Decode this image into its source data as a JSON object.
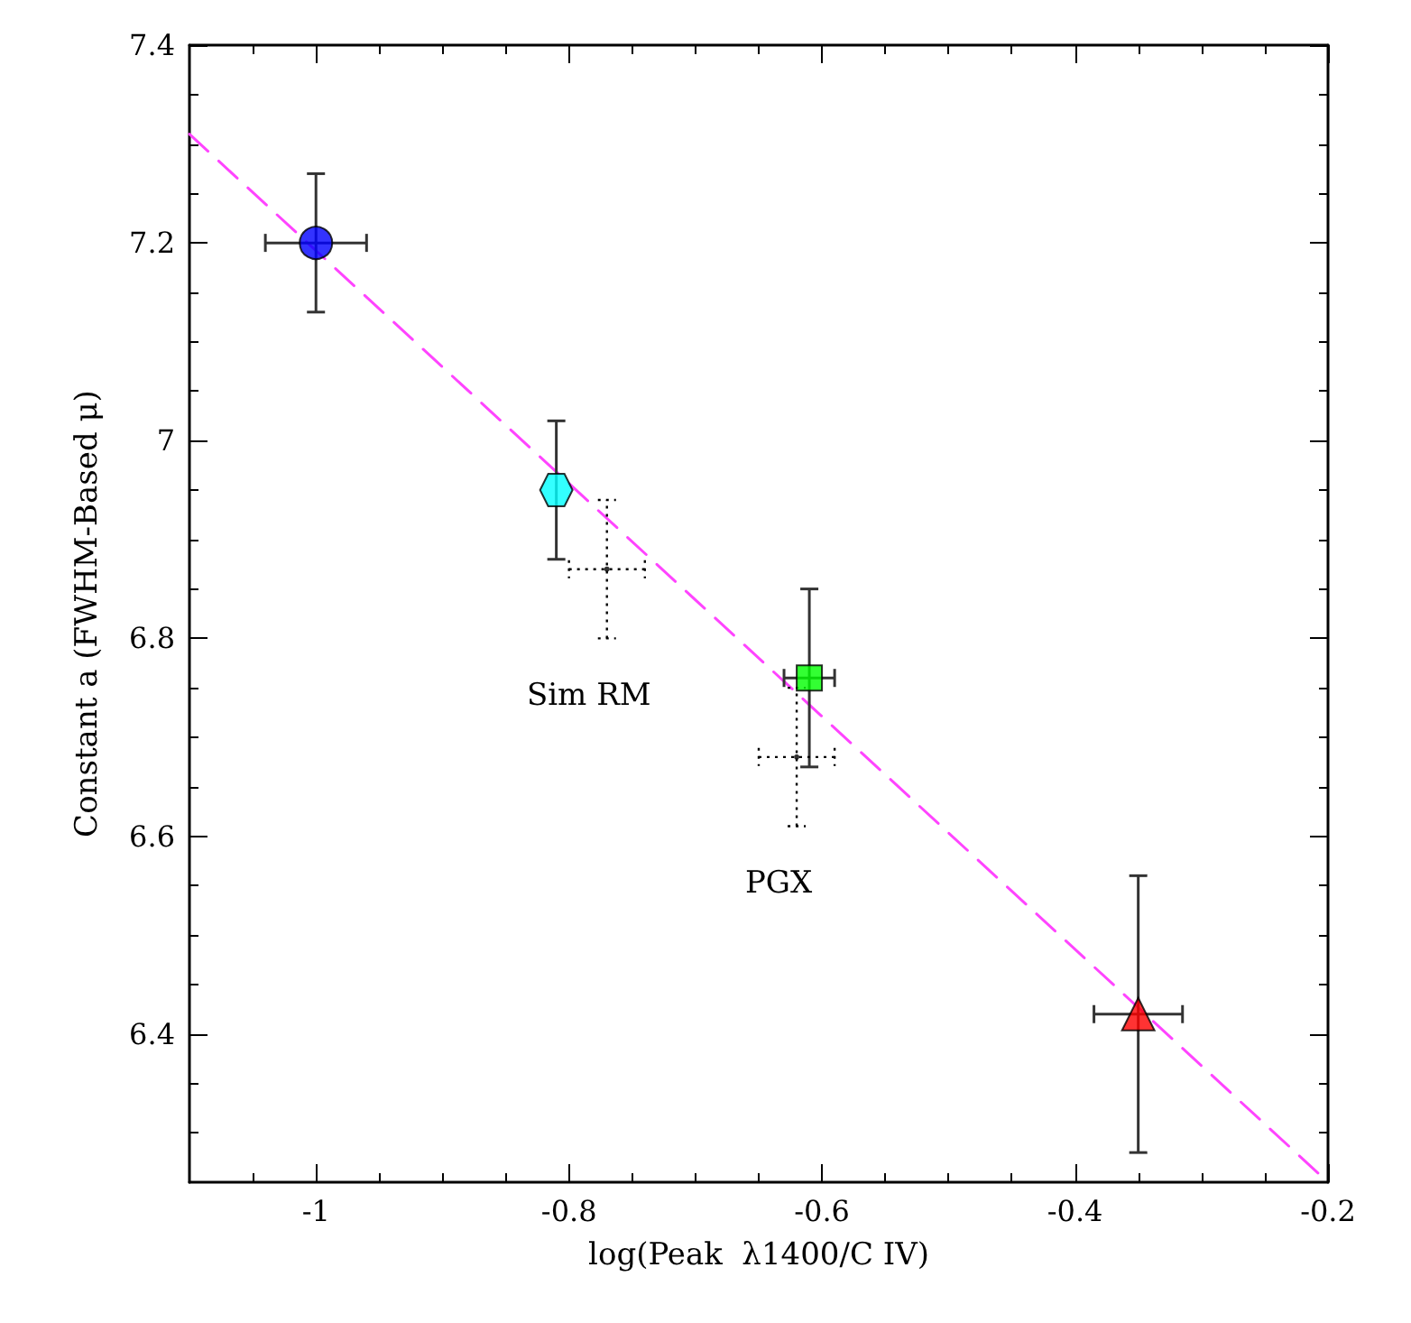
{
  "chart_data": {
    "type": "scatter",
    "xlabel": "log(Peak  λ1400/C IV)",
    "ylabel": "Constant a (FWHM-Based μ)",
    "xlim": [
      -1.1,
      -0.2
    ],
    "xticks": [
      -1,
      -0.8,
      -0.6,
      -0.4,
      -0.2
    ],
    "ylim": [
      6.25,
      7.4
    ],
    "yticks": [
      6.4,
      6.6,
      6.8,
      7,
      7.2,
      7.4
    ],
    "grid": false,
    "series": [
      {
        "type": "line",
        "color": "#ff44ff",
        "line_style": "dashed",
        "marker": "none",
        "x": [
          -1.1,
          -0.2
        ],
        "values": [
          7.31,
          6.25
        ]
      },
      {
        "color": "#0000ff",
        "marker": "circle",
        "x": [
          -1
        ],
        "values": [
          7.2
        ],
        "errors": [
          [
            7.13,
            7.27
          ]
        ],
        "xerrors": [
          0.04
        ]
      },
      {
        "color": "#00ffff",
        "x": [
          -0.81
        ],
        "values": [
          6.95
        ],
        "errors": [
          [
            6.88,
            7.02
          ]
        ]
      },
      {
        "color": "#000000",
        "marker": "circle",
        "line_style": "dotted",
        "x": [
          -0.77
        ],
        "values": [
          6.87
        ],
        "errors": [
          [
            6.8,
            6.94
          ]
        ],
        "xerrors": [
          [
            -0.8,
            -0.74
          ]
        ]
      },
      {
        "color": "#00ff00",
        "marker": "square",
        "x": [
          -0.61
        ],
        "values": [
          6.76
        ],
        "errors": [
          [
            6.67,
            6.85
          ]
        ],
        "xerrors": [
          0.02
        ]
      },
      {
        "color": "#000000",
        "marker": "circle",
        "line_style": "dotted",
        "x": [
          -0.62
        ],
        "values": [
          6.68
        ],
        "errors": [
          [
            6.61,
            6.75
          ]
        ],
        "xerrors": [
          [
            -0.65,
            -0.59
          ]
        ]
      },
      {
        "color": "#ff0000",
        "marker": "triangle",
        "x": [
          -0.35
        ],
        "values": [
          6.42
        ],
        "errors": [
          [
            6.28,
            6.56
          ]
        ],
        "xerrors": [
          [
            -0.385,
            -0.315
          ]
        ]
      }
    ],
    "annotations": [
      "Sim RM",
      "PGX"
    ]
  }
}
